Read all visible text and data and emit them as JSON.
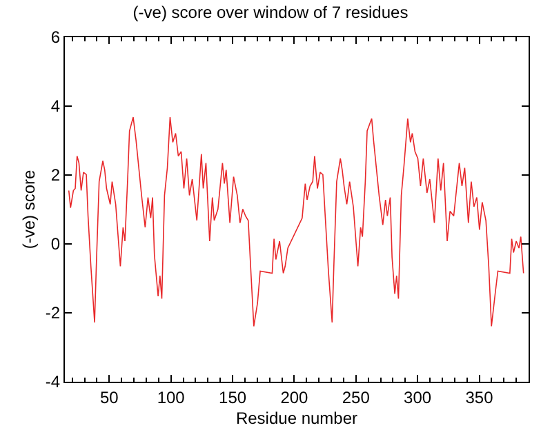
{
  "chart_data": {
    "type": "line",
    "title": "(-ve) score over window of 7 residues",
    "xlabel": "Residue number",
    "ylabel": "(-ve) score",
    "xlim": [
      14,
      390
    ],
    "ylim": [
      -4,
      6
    ],
    "xticks": [
      50,
      100,
      150,
      200,
      250,
      300,
      350
    ],
    "yticks": [
      -4,
      -2,
      0,
      2,
      4,
      6
    ],
    "marker": "none",
    "line_style": "solid",
    "series": [
      {
        "color": "#e8282a",
        "x": [
          17.2,
          18.6,
          20.9,
          22.4,
          23.9,
          25.4,
          27.2,
          29.1,
          31.4,
          32.8,
          35.1,
          38.1,
          39.6,
          41.8,
          44.8,
          46.3,
          47.8,
          50.8,
          52.3,
          55.2,
          59.0,
          61.2,
          62.7,
          64.9,
          66.4,
          69.4,
          71.7,
          76.2,
          79.1,
          81.4,
          83.6,
          85.1,
          86.6,
          89.6,
          91.1,
          92.6,
          94.8,
          97.1,
          99.3,
          101.5,
          103.8,
          106.0,
          108.3,
          110.5,
          112.8,
          115.0,
          117.3,
          121.0,
          124.7,
          126.2,
          128.4,
          131.4,
          133.6,
          135.1,
          138.1,
          141.8,
          143.3,
          144.8,
          147.8,
          150.8,
          153.8,
          156.0,
          158.3,
          160.5,
          162.7,
          165.0,
          167.2,
          170.2,
          172.4,
          182.1,
          183.6,
          185.1,
          188.1,
          191.1,
          192.6,
          194.8,
          206.4,
          208.9,
          210.4,
          212.8,
          215.0,
          216.5,
          218.8,
          221.0,
          223.2,
          225.1,
          227.7,
          230.7,
          232.2,
          234.4,
          237.4,
          238.9,
          240.4,
          242.6,
          244.9,
          247.9,
          251.6,
          253.8,
          255.3,
          257.6,
          259.1,
          262.8,
          264.3,
          268.8,
          271.8,
          274.0,
          275.5,
          277.8,
          279.3,
          281.5,
          283.0,
          284.5,
          286.8,
          289.0,
          292.0,
          294.2,
          295.7,
          297.9,
          300.2,
          302.4,
          304.6,
          307.6,
          309.9,
          313.6,
          316.6,
          318.8,
          321.0,
          324.0,
          326.3,
          329.3,
          333.8,
          336.0,
          338.2,
          341.2,
          343.5,
          345.7,
          348.0,
          350.2,
          352.4,
          355.4,
          357.7,
          359.9,
          362.9,
          365.1,
          374.8,
          376.3,
          377.8,
          380.0,
          382.2,
          383.7,
          385.9
        ],
        "values": [
          1.55,
          1.05,
          1.55,
          1.61,
          2.55,
          2.35,
          1.55,
          2.08,
          2.01,
          0.81,
          -0.65,
          -2.28,
          -0.52,
          1.81,
          2.41,
          2.15,
          1.61,
          1.15,
          1.81,
          1.15,
          -0.65,
          0.48,
          0.08,
          1.88,
          3.28,
          3.68,
          3.01,
          1.41,
          0.48,
          1.35,
          0.75,
          1.35,
          -0.32,
          -1.52,
          -0.92,
          -1.59,
          1.41,
          2.21,
          3.68,
          2.95,
          3.21,
          2.55,
          2.68,
          1.61,
          2.48,
          1.41,
          1.88,
          0.68,
          2.61,
          1.61,
          2.35,
          0.08,
          1.35,
          0.68,
          1.01,
          2.35,
          1.75,
          2.15,
          0.61,
          1.95,
          1.41,
          0.61,
          1.01,
          0.81,
          0.68,
          -0.92,
          -2.39,
          -1.72,
          -0.79,
          -0.85,
          0.15,
          -0.45,
          0.08,
          -0.85,
          -0.65,
          -0.12,
          0.75,
          1.75,
          1.28,
          1.68,
          1.81,
          2.55,
          1.61,
          2.08,
          2.01,
          0.81,
          -0.79,
          -2.28,
          -0.52,
          1.81,
          2.48,
          2.15,
          1.68,
          1.15,
          1.81,
          1.08,
          -0.65,
          0.48,
          0.21,
          1.81,
          3.28,
          3.64,
          3.01,
          1.41,
          0.55,
          1.28,
          0.81,
          1.35,
          -0.39,
          -1.45,
          -0.92,
          -1.59,
          1.41,
          2.28,
          3.64,
          2.95,
          3.21,
          2.68,
          2.48,
          1.68,
          2.48,
          1.48,
          1.88,
          0.61,
          2.48,
          1.55,
          2.35,
          0.08,
          0.95,
          0.81,
          2.35,
          1.68,
          2.21,
          0.61,
          1.81,
          1.08,
          1.35,
          0.41,
          1.21,
          0.68,
          -0.65,
          -2.39,
          -1.45,
          -0.79,
          -0.85,
          0.15,
          -0.25,
          0.08,
          -0.12,
          0.21,
          -0.85
        ]
      }
    ]
  }
}
